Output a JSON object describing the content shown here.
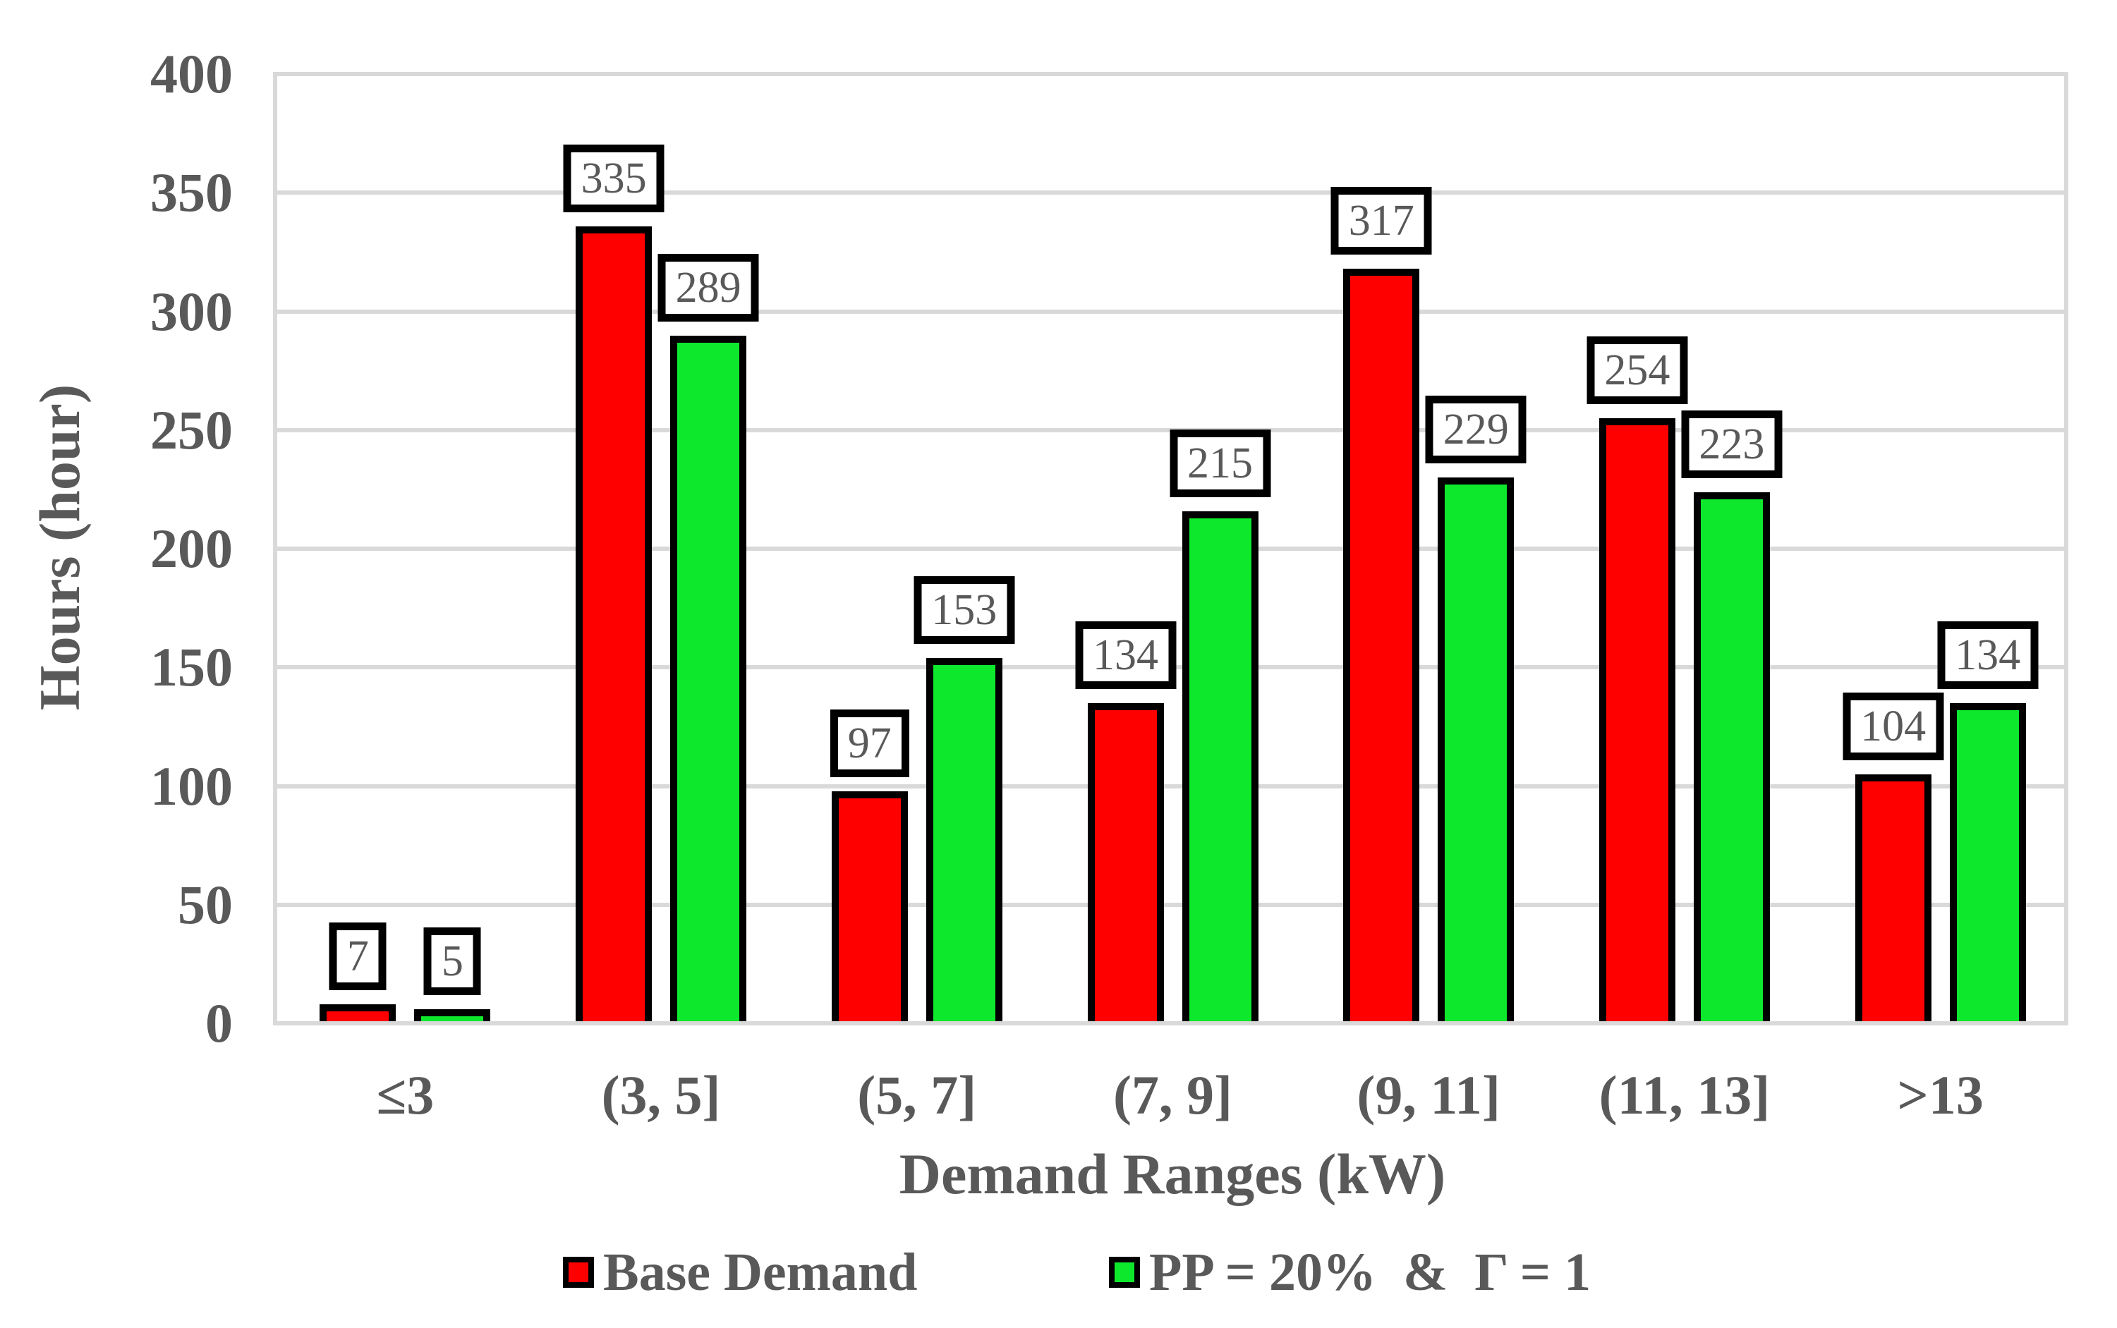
{
  "chart_data": {
    "type": "bar",
    "title": "",
    "categories": [
      "≤3",
      "(3, 5]",
      "(5, 7]",
      "(7, 9]",
      "(9, 11]",
      "(11, 13]",
      ">13"
    ],
    "series": [
      {
        "name": "Base Demand",
        "color": "#FF0000",
        "values": [
          7,
          335,
          97,
          134,
          317,
          254,
          104
        ]
      },
      {
        "name": "PP = 20%  &  Γ = 1",
        "color": "#0DE82D",
        "values": [
          5,
          289,
          153,
          215,
          229,
          223,
          134
        ]
      }
    ],
    "data_labels": {
      "base_demand": [
        7,
        335,
        97,
        134,
        317,
        254,
        104
      ],
      "pp20_gamma1": [
        5,
        289,
        153,
        215,
        229,
        223,
        134
      ]
    },
    "xlabel": "Demand Ranges (kW)",
    "ylabel": "Hours (hour)",
    "ylim": [
      0,
      400
    ],
    "yticks": [
      0,
      50,
      100,
      150,
      200,
      250,
      300,
      350,
      400
    ],
    "grid": true,
    "legend_position": "bottom",
    "colors": {
      "bar_outline": "#000000",
      "gridline": "#D9D9D9",
      "text": "#595959",
      "label_box_bg": "#FFFFFF",
      "label_box_border": "#000000"
    }
  }
}
